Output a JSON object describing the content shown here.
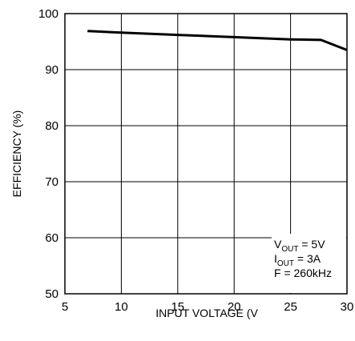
{
  "chart_data": {
    "type": "line",
    "title": "",
    "xlabel": "INPUT VOLTAGE (V",
    "ylabel": "EFFICIENCY (%)",
    "xlim": [
      5,
      30
    ],
    "ylim": [
      50,
      100
    ],
    "xticks": [
      "5",
      "10",
      "15",
      "20",
      "25",
      "30"
    ],
    "yticks": [
      "50",
      "60",
      "70",
      "80",
      "90",
      "100"
    ],
    "grid": true,
    "series": [
      {
        "x": [
          7,
          10,
          15,
          20,
          25,
          27.7,
          30
        ],
        "values": [
          96.9,
          96.6,
          96.2,
          95.8,
          95.4,
          95.3,
          93.5
        ]
      }
    ],
    "annotation": {
      "line1": {
        "main": "V",
        "sub": "OUT",
        "rest": " = 5V"
      },
      "line2": {
        "main": "I",
        "sub": "OUT",
        "rest": " = 3A"
      },
      "line3": "F = 260kHz"
    }
  }
}
